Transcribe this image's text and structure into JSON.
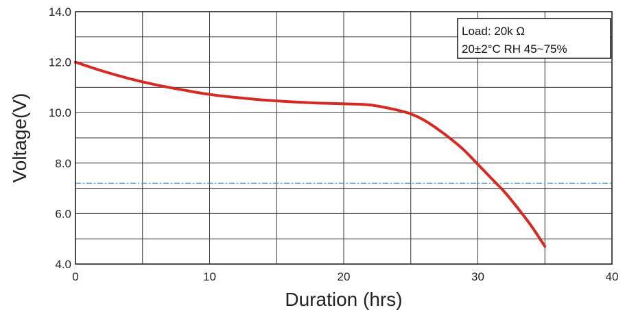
{
  "chart_data": {
    "type": "line",
    "xlabel": "Duration (hrs)",
    "ylabel": "Voltage(V)",
    "xlim": [
      0,
      40
    ],
    "ylim": [
      4.0,
      14.0
    ],
    "x_ticks": [
      "0",
      "10",
      "20",
      "30",
      "40"
    ],
    "y_ticks": [
      "4.0",
      "6.0",
      "8.0",
      "10.0",
      "12.0",
      "14.0"
    ],
    "grid": true,
    "legend_position": "top-right",
    "annotation_lines": [
      "Load: 20k Ω",
      "20±2°C  RH 45~75%"
    ],
    "reference_line": {
      "y": 7.2,
      "color": "#3fa0d8",
      "style": "dash-dot"
    },
    "series": [
      {
        "color": "#d42a22",
        "x": [
          0,
          2,
          4,
          6,
          8,
          10,
          12,
          14,
          16,
          18,
          20,
          22,
          24,
          25,
          26,
          27,
          28,
          29,
          30,
          31,
          32,
          33,
          34,
          35
        ],
        "y": [
          12.0,
          11.65,
          11.35,
          11.1,
          10.9,
          10.72,
          10.6,
          10.5,
          10.43,
          10.38,
          10.35,
          10.3,
          10.1,
          9.95,
          9.7,
          9.35,
          8.95,
          8.5,
          7.95,
          7.4,
          6.85,
          6.2,
          5.5,
          4.7
        ]
      }
    ]
  }
}
